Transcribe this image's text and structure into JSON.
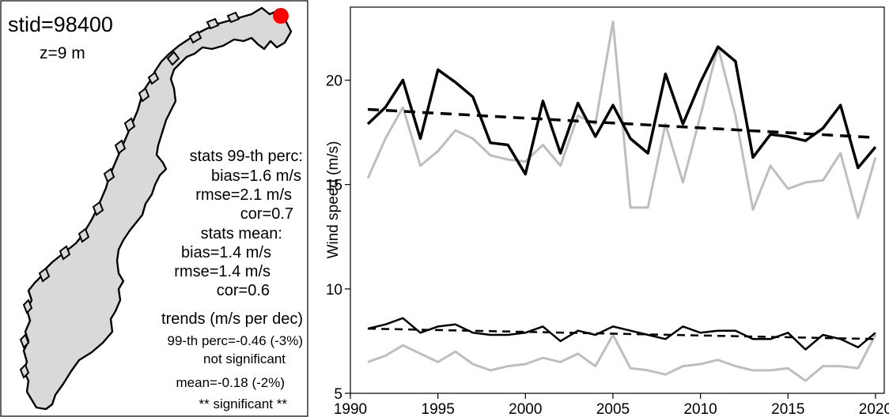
{
  "station": {
    "stid": "stid=98400",
    "z": "z=9 m",
    "marker_color": "#ff0000"
  },
  "stats_text": {
    "p99_header": "stats 99-th perc:",
    "p99_bias": "bias=1.6 m/s",
    "p99_rmse": "rmse=2.1 m/s",
    "p99_cor": "cor=0.7",
    "mean_header": "stats mean:",
    "mean_bias": "bias=1.4 m/s",
    "mean_rmse": "rmse=1.4 m/s",
    "mean_cor": "cor=0.6",
    "trends_header": "trends (m/s per dec)",
    "trend_p99": "99-th perc=-0.46 (-3%)",
    "trend_p99_sig": "not significant",
    "trend_mean": "mean=-0.18 (-2%)",
    "trend_mean_sig": "** significant **"
  },
  "map_colors": {
    "land": "#d9d9d9",
    "outline": "#000000"
  },
  "chart_data": {
    "type": "line",
    "title": "",
    "xlabel": "",
    "ylabel": "Wind speed (m/s)",
    "xlim": [
      1990,
      2020.5
    ],
    "ylim": [
      5,
      23.5
    ],
    "xticks": [
      1990,
      1995,
      2000,
      2005,
      2010,
      2015,
      2020
    ],
    "yticks": [
      5,
      10,
      15,
      20
    ],
    "x": [
      1991,
      1992,
      1993,
      1994,
      1995,
      1996,
      1997,
      1998,
      1999,
      2000,
      2001,
      2002,
      2003,
      2004,
      2005,
      2006,
      2007,
      2008,
      2009,
      2010,
      2011,
      2012,
      2013,
      2014,
      2015,
      2016,
      2017,
      2018,
      2019,
      2020
    ],
    "series": [
      {
        "role": "p99-observed",
        "color": "#bebebe",
        "width": 3,
        "dash": "",
        "values": [
          15.3,
          17.2,
          18.7,
          15.9,
          16.6,
          17.6,
          17.2,
          16.4,
          16.2,
          16.1,
          16.9,
          15.9,
          18.3,
          17.9,
          22.8,
          13.9,
          13.9,
          17.9,
          15.1,
          18.3,
          21.6,
          18.3,
          13.8,
          15.9,
          14.8,
          15.1,
          15.2,
          16.5,
          13.4,
          16.3
        ]
      },
      {
        "role": "mean-observed",
        "color": "#bebebe",
        "width": 3,
        "dash": "",
        "values": [
          6.5,
          6.8,
          7.3,
          6.9,
          6.5,
          7.0,
          6.4,
          6.1,
          6.3,
          6.4,
          6.7,
          6.5,
          6.9,
          6.3,
          7.8,
          6.2,
          6.1,
          5.9,
          6.3,
          6.4,
          6.6,
          6.3,
          6.1,
          6.1,
          6.2,
          5.6,
          6.3,
          6.3,
          6.2,
          7.8
        ]
      },
      {
        "role": "p99-modelled",
        "color": "#000000",
        "width": 3.5,
        "dash": "",
        "values": [
          17.9,
          18.7,
          20.0,
          17.2,
          20.5,
          19.9,
          19.2,
          17.0,
          16.9,
          15.5,
          19.0,
          16.5,
          18.9,
          17.3,
          18.8,
          17.2,
          16.5,
          20.3,
          17.9,
          19.9,
          21.6,
          20.9,
          16.3,
          17.4,
          17.3,
          17.1,
          17.7,
          18.8,
          15.8,
          16.8
        ]
      },
      {
        "role": "mean-modelled",
        "color": "#000000",
        "width": 2.5,
        "dash": "",
        "values": [
          8.1,
          8.3,
          8.6,
          7.9,
          8.2,
          8.3,
          7.9,
          7.8,
          7.8,
          7.9,
          8.2,
          7.5,
          8.0,
          7.8,
          8.2,
          8.0,
          7.8,
          7.6,
          8.2,
          7.9,
          8.0,
          8.0,
          7.6,
          7.6,
          7.9,
          7.1,
          7.8,
          7.6,
          7.2,
          7.9
        ]
      },
      {
        "role": "p99-trend",
        "color": "#000000",
        "width": 3.5,
        "dash": "14,9",
        "x": [
          1991,
          2020
        ],
        "values": [
          18.6,
          17.25
        ]
      },
      {
        "role": "mean-trend",
        "color": "#000000",
        "width": 2.5,
        "dash": "10,7",
        "x": [
          1991,
          2020
        ],
        "values": [
          8.1,
          7.6
        ]
      }
    ]
  }
}
